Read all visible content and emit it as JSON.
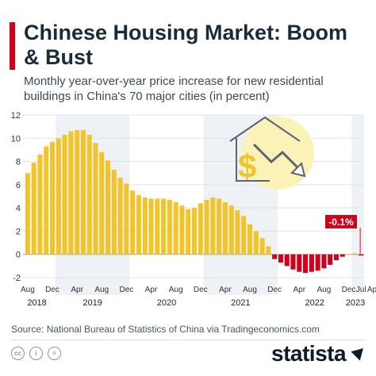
{
  "header": {
    "title": "Chinese Housing Market: Boom & Bust",
    "subtitle": "Monthly year-over-year price increase for new residential buildings in China's 70 major cities (in percent)"
  },
  "chart_data": {
    "type": "bar",
    "ylim": [
      -2,
      12
    ],
    "y_ticks": [
      -2,
      0,
      2,
      4,
      6,
      8,
      10,
      12
    ],
    "grid": true,
    "x_month_labels": [
      "Aug",
      "Dec",
      "Apr",
      "Aug",
      "Dec",
      "Apr",
      "Aug",
      "Dec",
      "Apr",
      "Aug",
      "Dec",
      "Apr",
      "Aug",
      "Dec",
      "Apr",
      "Jul"
    ],
    "x_year_labels": [
      "2018",
      "2019",
      "2020",
      "2021",
      "2022",
      "2023"
    ],
    "values": [
      7.0,
      7.9,
      8.6,
      9.3,
      9.7,
      10.0,
      10.3,
      10.6,
      10.7,
      10.7,
      10.3,
      9.6,
      8.8,
      8.1,
      7.3,
      6.6,
      6.1,
      5.5,
      5.1,
      4.9,
      4.8,
      4.8,
      4.8,
      4.7,
      4.5,
      4.2,
      3.9,
      4.0,
      4.4,
      4.7,
      4.9,
      4.8,
      4.5,
      4.2,
      3.8,
      3.3,
      2.6,
      2.0,
      1.4,
      0.7,
      -0.4,
      -0.7,
      -1.0,
      -1.3,
      -1.5,
      -1.6,
      -1.5,
      -1.4,
      -1.2,
      -0.9,
      -0.5,
      -0.2,
      0.0,
      0.1,
      -0.1
    ],
    "positive_color": "#f2c42c",
    "negative_color": "#d0021b",
    "highlight_label": "-0.1%",
    "highlight_index": 54
  },
  "footer": {
    "source": "Source: National Bureau of Statistics of China via Tradingeconomics.com",
    "brand": "statista",
    "icons": [
      "cc-icon",
      "info-icon",
      "equal-icon"
    ]
  }
}
